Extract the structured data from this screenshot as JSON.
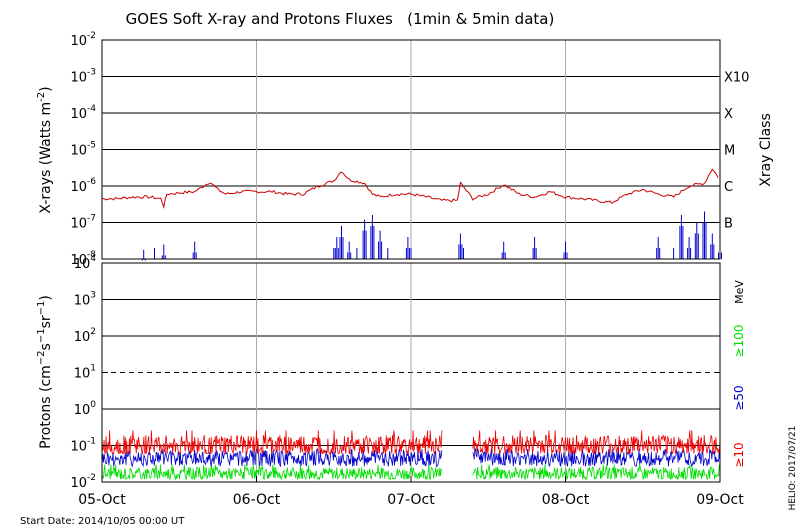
{
  "chart_data": [
    {
      "type": "line",
      "title": "GOES Soft X-ray and Protons Fluxes   (1min & 5min data)",
      "ylabel": "X-rays (Watts m^-2)",
      "ylabel_base": "X-rays (Watts m",
      "ylabel_exp": "-2",
      "ylabel_close": ")",
      "yscale": "log",
      "ylim": [
        1e-08,
        0.01
      ],
      "ytick_exponents": [
        "-8",
        "-7",
        "-6",
        "-5",
        "-4",
        "-3",
        "-2"
      ],
      "right_axis_label": "Xray Class",
      "xray_classes": [
        {
          "label": "X10",
          "flux": 0.001
        },
        {
          "label": "X",
          "flux": 0.0001
        },
        {
          "label": "M",
          "flux": 1e-05
        },
        {
          "label": "C",
          "flux": 1e-06
        },
        {
          "label": "B",
          "flux": 1e-07
        }
      ],
      "series": [
        {
          "color": "#cc0000",
          "x_day": [
            0.0,
            0.1,
            0.2,
            0.3,
            0.38,
            0.4,
            0.42,
            0.5,
            0.6,
            0.7,
            0.75,
            0.8,
            0.9,
            1.0,
            1.1,
            1.2,
            1.3,
            1.4,
            1.5,
            1.55,
            1.6,
            1.7,
            1.75,
            1.8,
            1.9,
            2.0,
            2.1,
            2.2,
            2.3,
            2.32,
            2.4,
            2.5,
            2.6,
            2.7,
            2.8,
            2.9,
            3.0,
            3.1,
            3.2,
            3.3,
            3.4,
            3.5,
            3.6,
            3.7,
            3.8,
            3.9,
            3.95,
            4.0
          ],
          "flux": [
            4.5e-07,
            4.5e-07,
            5e-07,
            5e-07,
            4.5e-07,
            2.8e-07,
            6e-07,
            6.5e-07,
            7e-07,
            1.3e-06,
            8e-07,
            6e-07,
            7e-07,
            7e-07,
            7e-07,
            6e-07,
            6e-07,
            1e-06,
            1.4e-06,
            2.6e-06,
            1.5e-06,
            1.2e-06,
            6e-07,
            5e-07,
            6e-07,
            6e-07,
            5e-07,
            4e-07,
            4e-07,
            1.2e-06,
            4.5e-07,
            6e-07,
            1.1e-06,
            6e-07,
            5e-07,
            7e-07,
            5e-07,
            4.5e-07,
            4e-07,
            3.5e-07,
            6e-07,
            8e-07,
            6e-07,
            5e-07,
            1e-06,
            1.2e-06,
            3e-06,
            1.5e-06
          ]
        },
        {
          "color": "#0000cc",
          "x_day": [
            0.0,
            0.2,
            0.27,
            0.3,
            0.34,
            0.4,
            0.5,
            0.6,
            0.7,
            0.8,
            0.9,
            1.0,
            1.1,
            1.2,
            1.3,
            1.4,
            1.5,
            1.52,
            1.55,
            1.6,
            1.65,
            1.7,
            1.75,
            1.8,
            1.85,
            1.9,
            1.98,
            2.0,
            2.1,
            2.2,
            2.3,
            2.32,
            2.34,
            2.4,
            2.5,
            2.6,
            2.7,
            2.8,
            2.9,
            3.0,
            3.1,
            3.2,
            3.3,
            3.4,
            3.5,
            3.6,
            3.7,
            3.75,
            3.8,
            3.85,
            3.9,
            3.95,
            4.0
          ],
          "flux": [
            null,
            null,
            1.8e-08,
            null,
            2e-08,
            2.5e-08,
            null,
            3e-08,
            null,
            null,
            null,
            null,
            null,
            null,
            null,
            null,
            2e-08,
            4e-08,
            8e-08,
            3e-08,
            2e-08,
            1.2e-07,
            1.6e-07,
            6e-08,
            2e-08,
            null,
            4e-08,
            2e-08,
            null,
            null,
            null,
            5e-08,
            2e-08,
            null,
            null,
            3e-08,
            null,
            4e-08,
            null,
            3e-08,
            null,
            null,
            null,
            null,
            null,
            4e-08,
            2e-08,
            1.6e-07,
            4e-08,
            1e-07,
            2e-07,
            5e-08,
            3e-08
          ]
        }
      ]
    },
    {
      "type": "line",
      "ylabel": "Protons (cm^-2 s^-1 sr^-1)",
      "yscale": "log",
      "ylim": [
        0.01,
        10000
      ],
      "ytick_labels": [
        "10^-2",
        "10^-1",
        "10^0",
        "10^1",
        "10^2",
        "10^3",
        "10^4"
      ],
      "ytick_exponents": [
        "-2",
        "-1",
        "0",
        "1",
        "2",
        "3",
        "4"
      ],
      "dashed_threshold": 10,
      "unit_label": "MeV",
      "data_gap_days": [
        2.2,
        2.4
      ],
      "series": [
        {
          "name": "≥100",
          "color": "#00dd00",
          "baseline": 0.017,
          "min": 0.012,
          "max": 0.03
        },
        {
          "name": "≥50",
          "color": "#0000cc",
          "baseline": 0.045,
          "min": 0.025,
          "max": 0.08
        },
        {
          "name": "≥10",
          "color": "#ee0000",
          "baseline": 0.1,
          "min": 0.06,
          "max": 0.26
        }
      ]
    }
  ],
  "x_axis": {
    "categories": [
      "05-Oct",
      "06-Oct",
      "07-Oct",
      "08-Oct",
      "09-Oct"
    ],
    "range_days": [
      0,
      4
    ]
  },
  "footer": {
    "start_date": "Start Date: 2014/10/05 00:00 UT",
    "credit": "HELIO: 2017/07/21"
  }
}
